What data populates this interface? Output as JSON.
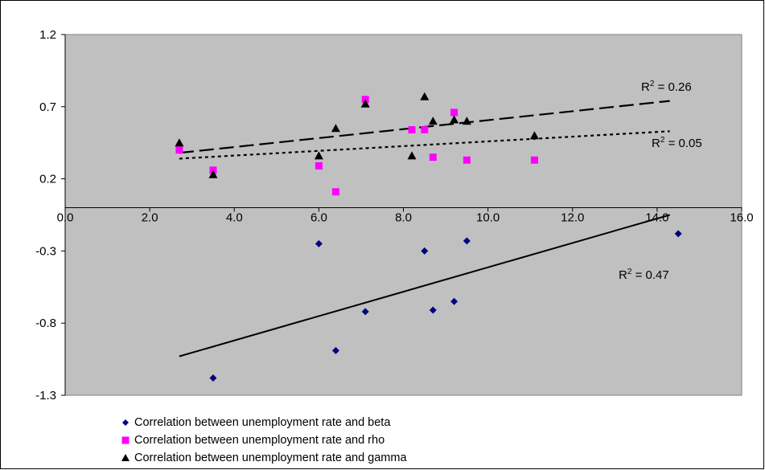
{
  "chart_data": {
    "type": "scatter",
    "xlim": [
      0,
      16
    ],
    "ylim": [
      -1.3,
      1.2
    ],
    "x_ticks": [
      "0.0",
      "2.0",
      "4.0",
      "6.0",
      "8.0",
      "10.0",
      "12.0",
      "14.0",
      "16.0"
    ],
    "y_ticks": [
      "1.2",
      "0.7",
      "0.2",
      "-0.3",
      "-0.8",
      "-1.3"
    ],
    "grid": false,
    "legend_position": "bottom",
    "plot_background": "#c0c0c0",
    "series": [
      {
        "name": "Correlation between unemployment rate and beta",
        "marker": "diamond",
        "color": "#000080",
        "points": [
          [
            3.5,
            -1.18
          ],
          [
            6.0,
            -0.25
          ],
          [
            6.4,
            -0.99
          ],
          [
            7.1,
            -0.72
          ],
          [
            8.5,
            -0.3
          ],
          [
            8.7,
            -0.71
          ],
          [
            9.2,
            -0.65
          ],
          [
            9.5,
            -0.23
          ],
          [
            14.5,
            -0.18
          ]
        ],
        "trendline": {
          "style": "solid",
          "x": [
            2.7,
            14.3
          ],
          "y": [
            -1.03,
            -0.05
          ]
        },
        "r2_label": "R² = 0.47",
        "r2_text": "R",
        "r2_sup": "2",
        "r2_value": " = 0.47"
      },
      {
        "name": "Correlation between unemployment rate and rho",
        "marker": "square",
        "color": "#ff00ff",
        "points": [
          [
            2.7,
            0.4
          ],
          [
            3.5,
            0.26
          ],
          [
            6.0,
            0.29
          ],
          [
            6.4,
            0.11
          ],
          [
            7.1,
            0.75
          ],
          [
            8.2,
            0.54
          ],
          [
            8.5,
            0.54
          ],
          [
            8.7,
            0.35
          ],
          [
            9.2,
            0.66
          ],
          [
            9.5,
            0.33
          ],
          [
            11.1,
            0.33
          ]
        ],
        "trendline": {
          "style": "dotted",
          "x": [
            2.7,
            14.3
          ],
          "y": [
            0.34,
            0.53
          ]
        },
        "r2_label": "R² = 0.05",
        "r2_text": "R",
        "r2_sup": "2",
        "r2_value": " = 0.05"
      },
      {
        "name": "Correlation between unemployment rate and gamma",
        "marker": "triangle",
        "color": "#000000",
        "points": [
          [
            2.7,
            0.45
          ],
          [
            3.5,
            0.23
          ],
          [
            6.0,
            0.36
          ],
          [
            6.4,
            0.55
          ],
          [
            7.1,
            0.72
          ],
          [
            8.2,
            0.36
          ],
          [
            8.5,
            0.77
          ],
          [
            8.7,
            0.6
          ],
          [
            9.2,
            0.61
          ],
          [
            9.5,
            0.6
          ],
          [
            11.1,
            0.5
          ]
        ],
        "trendline": {
          "style": "dashed",
          "x": [
            2.7,
            14.3
          ],
          "y": [
            0.38,
            0.74
          ]
        },
        "r2_label": "R² = 0.26",
        "r2_text": "R",
        "r2_sup": "2",
        "r2_value": " = 0.26"
      }
    ]
  }
}
